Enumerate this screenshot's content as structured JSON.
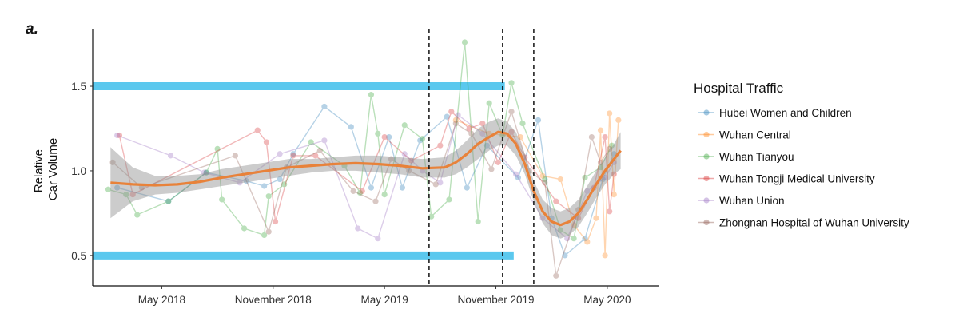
{
  "chart_data": {
    "type": "line",
    "panel_label": "a.",
    "ylabel": [
      "Relative",
      "Car Volume"
    ],
    "ylim": [
      0.32,
      1.84
    ],
    "xlim": [
      2018.02,
      2020.56
    ],
    "y_ticks": [
      {
        "value": 0.5,
        "label": "0.5"
      },
      {
        "value": 1.0,
        "label": "1.0"
      },
      {
        "value": 1.5,
        "label": "1.5"
      }
    ],
    "x_ticks": [
      {
        "value": 2018.33,
        "label": "May 2018"
      },
      {
        "value": 2018.83,
        "label": "November 2018"
      },
      {
        "value": 2019.33,
        "label": "May 2019"
      },
      {
        "value": 2019.83,
        "label": "November 2019"
      },
      {
        "value": 2020.33,
        "label": "May 2020"
      }
    ],
    "reference_bands": [
      {
        "y": 1.5,
        "x_start": 2018.02,
        "x_end": 2019.87,
        "color": "#5bc8ee"
      },
      {
        "y": 0.5,
        "x_start": 2018.02,
        "x_end": 2019.91,
        "color": "#5bc8ee"
      }
    ],
    "vertical_lines": [
      2019.53,
      2019.86,
      2020.0
    ],
    "legend": {
      "title": "Hospital Traffic",
      "position": "right"
    },
    "series": [
      {
        "name": "Hubei Women and Children",
        "color": "#1f77b4",
        "x": [
          2018.13,
          2018.36,
          2018.53,
          2018.71,
          2018.79,
          2018.86,
          2018.92,
          2019.06,
          2019.18,
          2019.27,
          2019.35,
          2019.41,
          2019.49,
          2019.61,
          2019.7,
          2019.79,
          2019.93,
          2020.02,
          2020.08,
          2020.14,
          2020.23,
          2020.31,
          2020.36
        ],
        "y": [
          0.9,
          0.82,
          0.99,
          0.94,
          0.91,
          0.95,
          1.1,
          1.38,
          1.26,
          0.9,
          1.2,
          0.9,
          1.18,
          1.32,
          0.9,
          1.15,
          0.96,
          1.3,
          0.72,
          0.5,
          0.6,
          0.95,
          1.1
        ]
      },
      {
        "name": "Wuhan Central",
        "color": "#ff7f0e",
        "x": [
          2019.65,
          2019.8,
          2019.94,
          2020.04,
          2020.12,
          2020.18,
          2020.24,
          2020.28,
          2020.3,
          2020.32,
          2020.34,
          2020.36,
          2020.38
        ],
        "y": [
          1.3,
          1.22,
          1.2,
          0.97,
          0.95,
          0.68,
          0.58,
          0.72,
          1.24,
          0.5,
          1.34,
          0.86,
          1.3
        ]
      },
      {
        "name": "Wuhan Tianyou",
        "color": "#2ca02c",
        "x": [
          2018.09,
          2018.17,
          2018.22,
          2018.36,
          2018.53,
          2018.58,
          2018.6,
          2018.7,
          2018.79,
          2018.81,
          2018.88,
          2019.0,
          2019.15,
          2019.22,
          2019.27,
          2019.3,
          2019.33,
          2019.42,
          2019.5,
          2019.54,
          2019.62,
          2019.69,
          2019.75,
          2019.8,
          2019.86,
          2019.9,
          2019.95,
          2020.05,
          2020.12,
          2020.18,
          2020.23,
          2020.3,
          2020.35
        ],
        "y": [
          0.89,
          0.86,
          0.74,
          0.82,
          0.99,
          1.13,
          0.83,
          0.66,
          0.62,
          0.85,
          0.92,
          1.17,
          1.03,
          0.87,
          1.45,
          1.22,
          0.86,
          1.27,
          1.19,
          0.73,
          0.83,
          1.76,
          0.7,
          1.4,
          1.21,
          1.52,
          1.28,
          0.95,
          0.65,
          0.6,
          0.96,
          1.02,
          1.15
        ]
      },
      {
        "name": "Wuhan Tongji Medical University",
        "color": "#d62728",
        "x": [
          2018.14,
          2018.2,
          2018.76,
          2018.8,
          2018.84,
          2018.92,
          2019.02,
          2019.23,
          2019.33,
          2019.45,
          2019.58,
          2019.63,
          2019.71,
          2019.77,
          2019.84,
          2019.9,
          2019.96,
          2020.1,
          2020.2,
          2020.27,
          2020.32,
          2020.34,
          2020.36
        ],
        "y": [
          1.21,
          0.86,
          1.24,
          1.17,
          0.7,
          1.09,
          1.09,
          0.88,
          1.2,
          1.06,
          1.15,
          1.35,
          1.25,
          1.28,
          1.05,
          1.23,
          1.08,
          0.82,
          0.72,
          0.9,
          1.2,
          0.76,
          0.98
        ]
      },
      {
        "name": "Wuhan Union",
        "color": "#9467bd",
        "x": [
          2018.13,
          2018.37,
          2018.52,
          2018.68,
          2018.86,
          2019.06,
          2019.21,
          2019.3,
          2019.42,
          2019.5,
          2019.58,
          2019.66,
          2019.77,
          2019.92,
          2020.04,
          2020.15,
          2020.24,
          2020.32,
          2020.36
        ],
        "y": [
          1.21,
          1.09,
          0.99,
          0.93,
          1.1,
          1.18,
          0.66,
          0.6,
          1.1,
          1.0,
          0.93,
          1.33,
          1.22,
          0.98,
          0.72,
          0.6,
          0.88,
          0.96,
          1.05
        ]
      },
      {
        "name": "Zhongnan Hospital of Wuhan University",
        "color": "#8c564b",
        "x": [
          2018.11,
          2018.24,
          2018.66,
          2018.81,
          2018.89,
          2019.04,
          2019.19,
          2019.29,
          2019.36,
          2019.44,
          2019.56,
          2019.65,
          2019.72,
          2019.81,
          2019.9,
          2019.98,
          2020.05,
          2020.1,
          2020.2,
          2020.26,
          2020.3,
          2020.34
        ],
        "y": [
          1.05,
          0.9,
          1.09,
          0.64,
          1.02,
          1.12,
          0.88,
          0.82,
          1.07,
          1.0,
          0.92,
          1.28,
          1.22,
          1.01,
          1.35,
          1.0,
          0.93,
          0.38,
          0.77,
          1.2,
          1.05,
          1.13
        ]
      }
    ],
    "trend": {
      "color": "#e8823a",
      "x": [
        2018.1,
        2018.2,
        2018.3,
        2018.4,
        2018.5,
        2018.6,
        2018.7,
        2018.8,
        2018.9,
        2019.0,
        2019.1,
        2019.2,
        2019.3,
        2019.4,
        2019.5,
        2019.6,
        2019.65,
        2019.7,
        2019.75,
        2019.8,
        2019.84,
        2019.88,
        2019.92,
        2019.96,
        2020.0,
        2020.04,
        2020.08,
        2020.12,
        2020.16,
        2020.2,
        2020.24,
        2020.28,
        2020.32,
        2020.36,
        2020.39
      ],
      "y": [
        0.93,
        0.92,
        0.915,
        0.92,
        0.935,
        0.96,
        0.98,
        1.0,
        1.02,
        1.03,
        1.04,
        1.045,
        1.04,
        1.03,
        1.015,
        1.02,
        1.05,
        1.1,
        1.16,
        1.2,
        1.23,
        1.22,
        1.16,
        1.04,
        0.88,
        0.76,
        0.7,
        0.68,
        0.7,
        0.75,
        0.83,
        0.92,
        1.0,
        1.07,
        1.12
      ],
      "ci_lower": [
        0.72,
        0.82,
        0.86,
        0.87,
        0.89,
        0.91,
        0.93,
        0.95,
        0.97,
        0.99,
        1.0,
        1.0,
        0.99,
        0.98,
        0.96,
        0.96,
        0.98,
        1.02,
        1.07,
        1.12,
        1.15,
        1.15,
        1.09,
        0.98,
        0.82,
        0.69,
        0.62,
        0.6,
        0.62,
        0.67,
        0.75,
        0.84,
        0.92,
        0.98,
        1.01
      ],
      "ci_upper": [
        1.14,
        1.02,
        0.97,
        0.97,
        0.98,
        1.01,
        1.03,
        1.05,
        1.07,
        1.07,
        1.08,
        1.09,
        1.09,
        1.08,
        1.07,
        1.08,
        1.12,
        1.18,
        1.25,
        1.29,
        1.31,
        1.29,
        1.23,
        1.1,
        0.94,
        0.83,
        0.78,
        0.76,
        0.78,
        0.83,
        0.91,
        1.0,
        1.08,
        1.16,
        1.23
      ]
    }
  }
}
